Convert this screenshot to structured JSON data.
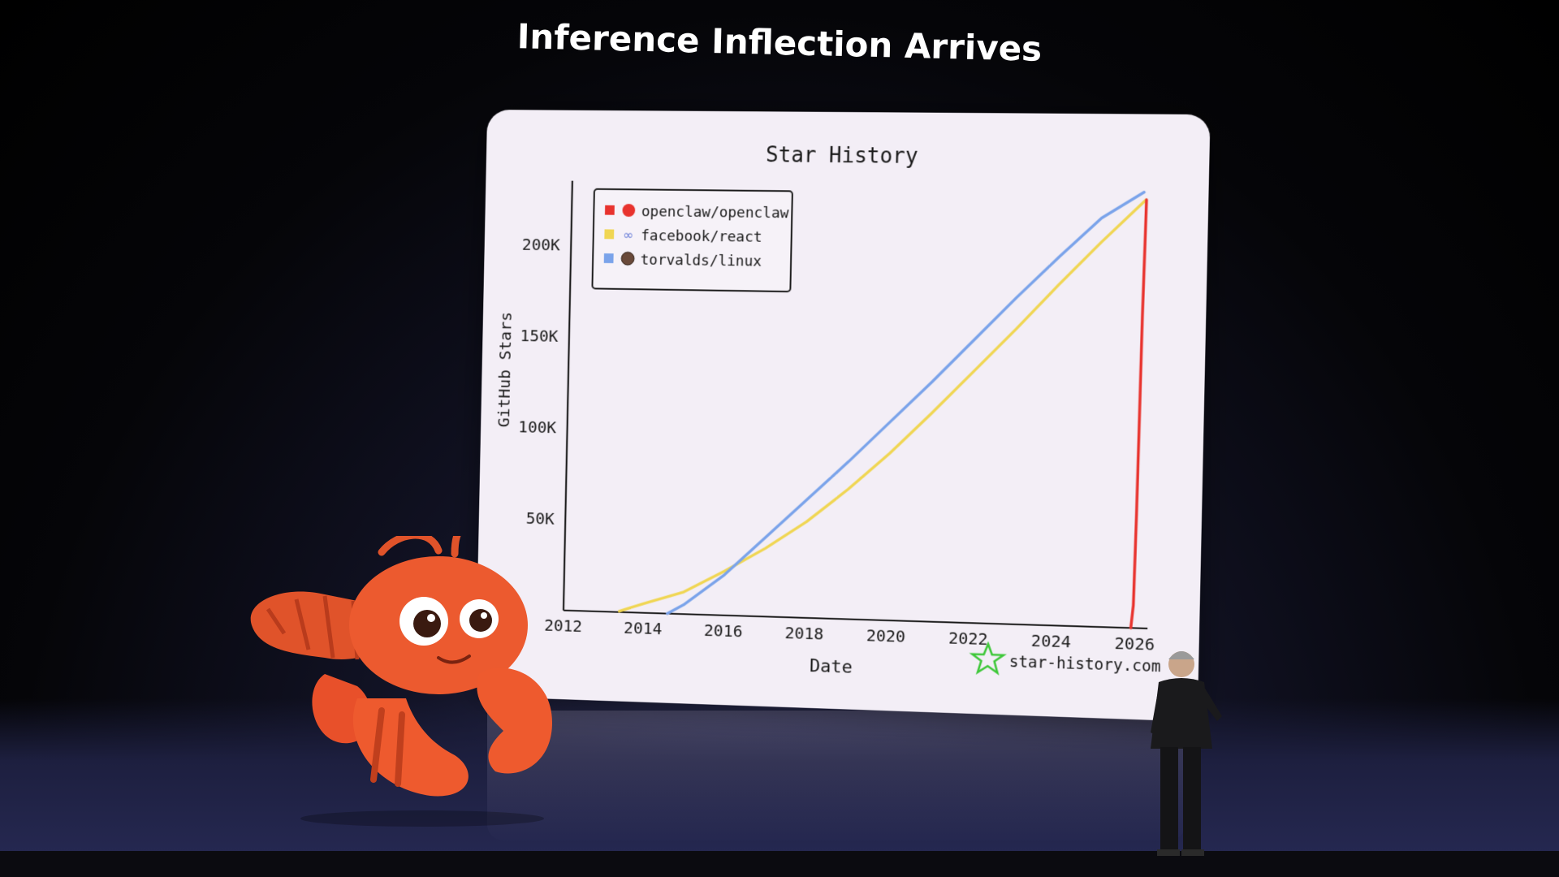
{
  "slide": {
    "title": "Inference Inflection Arrives"
  },
  "colors": {
    "openclaw": "#e8332e",
    "react": "#f0d653",
    "linux": "#7aa3ea",
    "screen_bg": "#f3eef6",
    "watermark": "#3fc83a"
  },
  "chart_data": {
    "type": "line",
    "title": "Star History",
    "xlabel": "Date",
    "ylabel": "GitHub Stars",
    "x_ticks": [
      "2012",
      "2014",
      "2016",
      "2018",
      "2020",
      "2022",
      "2024",
      "2026"
    ],
    "y_ticks": [
      "50K",
      "100K",
      "150K",
      "200K"
    ],
    "xlim": [
      2012,
      2026.3
    ],
    "ylim": [
      0,
      235000
    ],
    "legend_position": "top-left",
    "watermark": "star-history.com",
    "series": [
      {
        "name": "openclaw/openclaw",
        "color_key": "openclaw",
        "icon": "openclaw-logo-icon",
        "points": [
          [
            2025.9,
            0
          ],
          [
            2025.95,
            12000
          ],
          [
            2025.98,
            60000
          ],
          [
            2026.0,
            110000
          ],
          [
            2026.02,
            165000
          ],
          [
            2026.05,
            210000
          ],
          [
            2026.06,
            228000
          ]
        ]
      },
      {
        "name": "facebook/react",
        "color_key": "react",
        "icon": "infinity-icon",
        "points": [
          [
            2013.4,
            500
          ],
          [
            2014.0,
            5000
          ],
          [
            2015.0,
            12000
          ],
          [
            2016.0,
            24000
          ],
          [
            2017.0,
            37000
          ],
          [
            2018.0,
            52000
          ],
          [
            2019.0,
            70000
          ],
          [
            2020.0,
            90000
          ],
          [
            2021.0,
            112000
          ],
          [
            2022.0,
            135000
          ],
          [
            2023.0,
            158000
          ],
          [
            2024.0,
            182000
          ],
          [
            2025.0,
            205000
          ],
          [
            2026.05,
            228000
          ]
        ]
      },
      {
        "name": "torvalds/linux",
        "color_key": "linux",
        "icon": "avatar-icon",
        "points": [
          [
            2014.6,
            0
          ],
          [
            2015.0,
            5000
          ],
          [
            2016.0,
            22000
          ],
          [
            2017.0,
            43000
          ],
          [
            2018.0,
            64000
          ],
          [
            2019.0,
            85000
          ],
          [
            2020.0,
            107000
          ],
          [
            2021.0,
            129000
          ],
          [
            2022.0,
            152000
          ],
          [
            2023.0,
            175000
          ],
          [
            2024.0,
            197000
          ],
          [
            2025.0,
            218000
          ],
          [
            2026.0,
            232000
          ]
        ]
      }
    ]
  }
}
